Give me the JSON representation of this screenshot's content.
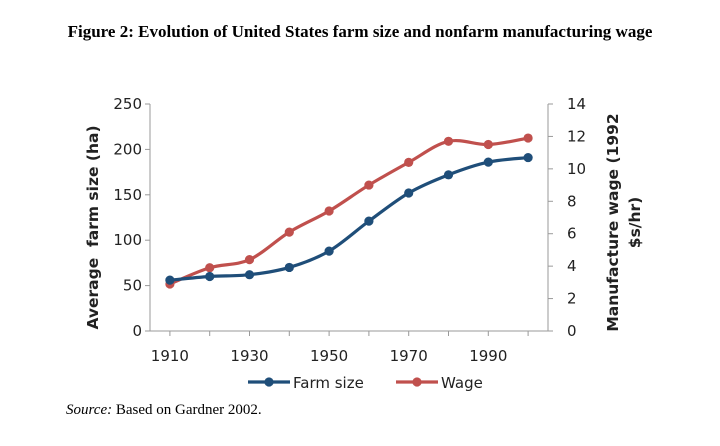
{
  "figure": {
    "title": "Figure 2: Evolution of United States farm size and nonfarm manufacturing wage",
    "source_label": "Source:",
    "source_text": " Based on Gardner 2002."
  },
  "chart_data": {
    "type": "line",
    "title": "",
    "x": [
      1910,
      1920,
      1930,
      1940,
      1950,
      1960,
      1970,
      1980,
      1990,
      2000
    ],
    "x_tick_labels": [
      "1910",
      "1930",
      "1950",
      "1970",
      "1990"
    ],
    "x_ticks": [
      1910,
      1930,
      1950,
      1970,
      1990
    ],
    "xlim": [
      1905,
      2005
    ],
    "ylabel": "Average  farm size (ha)",
    "ylim": [
      0,
      250
    ],
    "y_ticks": [
      0,
      50,
      100,
      150,
      200,
      250
    ],
    "y2label_line1": "Manufacture wage (1992",
    "y2label_line2": "$s/hr)",
    "y2lim": [
      0,
      14
    ],
    "y2_ticks": [
      0,
      2,
      4,
      6,
      8,
      10,
      12,
      14
    ],
    "grid": false,
    "legend_position": "bottom",
    "series": [
      {
        "name": "Farm size",
        "axis": "left",
        "color": "#1f4e79",
        "values": [
          56,
          60,
          62,
          70,
          88,
          121,
          152,
          172,
          186,
          191
        ]
      },
      {
        "name": "Wage",
        "axis": "right",
        "color": "#c0504d",
        "values": [
          2.9,
          3.9,
          4.4,
          6.1,
          7.4,
          9.0,
          10.4,
          11.7,
          11.5,
          11.9
        ]
      }
    ]
  }
}
